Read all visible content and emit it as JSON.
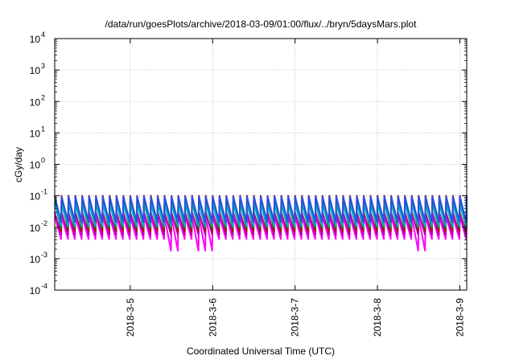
{
  "chart_data": {
    "type": "line",
    "title": "/data/run/goesPlots/archive/2018-03-09/01:00/flux/../bryn/5daysMars.plot",
    "xlabel": "Coordinated Universal Time (UTC)",
    "ylabel": "cGy/day",
    "yscale": "log",
    "ylim": [
      0.0001,
      10000
    ],
    "xlim": [
      "2018-03-04 02:00",
      "2018-03-09 02:00"
    ],
    "grid": true,
    "y_ticks": [
      {
        "base": "10",
        "exp": "-4"
      },
      {
        "base": "10",
        "exp": "-3"
      },
      {
        "base": "10",
        "exp": "-2"
      },
      {
        "base": "10",
        "exp": "-1"
      },
      {
        "base": "10",
        "exp": "0"
      },
      {
        "base": "10",
        "exp": "1"
      },
      {
        "base": "10",
        "exp": "2"
      },
      {
        "base": "10",
        "exp": "3"
      },
      {
        "base": "10",
        "exp": "4"
      }
    ],
    "x_ticks": [
      "2018-3-5",
      "2018-3-6",
      "2018-3-7",
      "2018-3-8",
      "2018-3-9"
    ],
    "series": [
      {
        "color": "#ff00ff",
        "peak": 0.022,
        "trough": 0.0042,
        "dip_trough": 0.0026,
        "dip_at": [
          "2018-03-05 12:00",
          "2018-03-05 21:00",
          "2018-03-08 12:00"
        ],
        "dip_value": 0.0018
      },
      {
        "color": "#b000b0",
        "peak": 0.03,
        "trough": 0.0058
      },
      {
        "color": "#c00000",
        "peak": 0.1,
        "trough": 0.0075
      },
      {
        "color": "#009000",
        "peak": 0.06,
        "trough": 0.0095
      },
      {
        "color": "#00b0c0",
        "peak": 0.055,
        "trough": 0.011
      },
      {
        "color": "#2850e0",
        "peak": 0.095,
        "trough": 0.015
      }
    ]
  }
}
